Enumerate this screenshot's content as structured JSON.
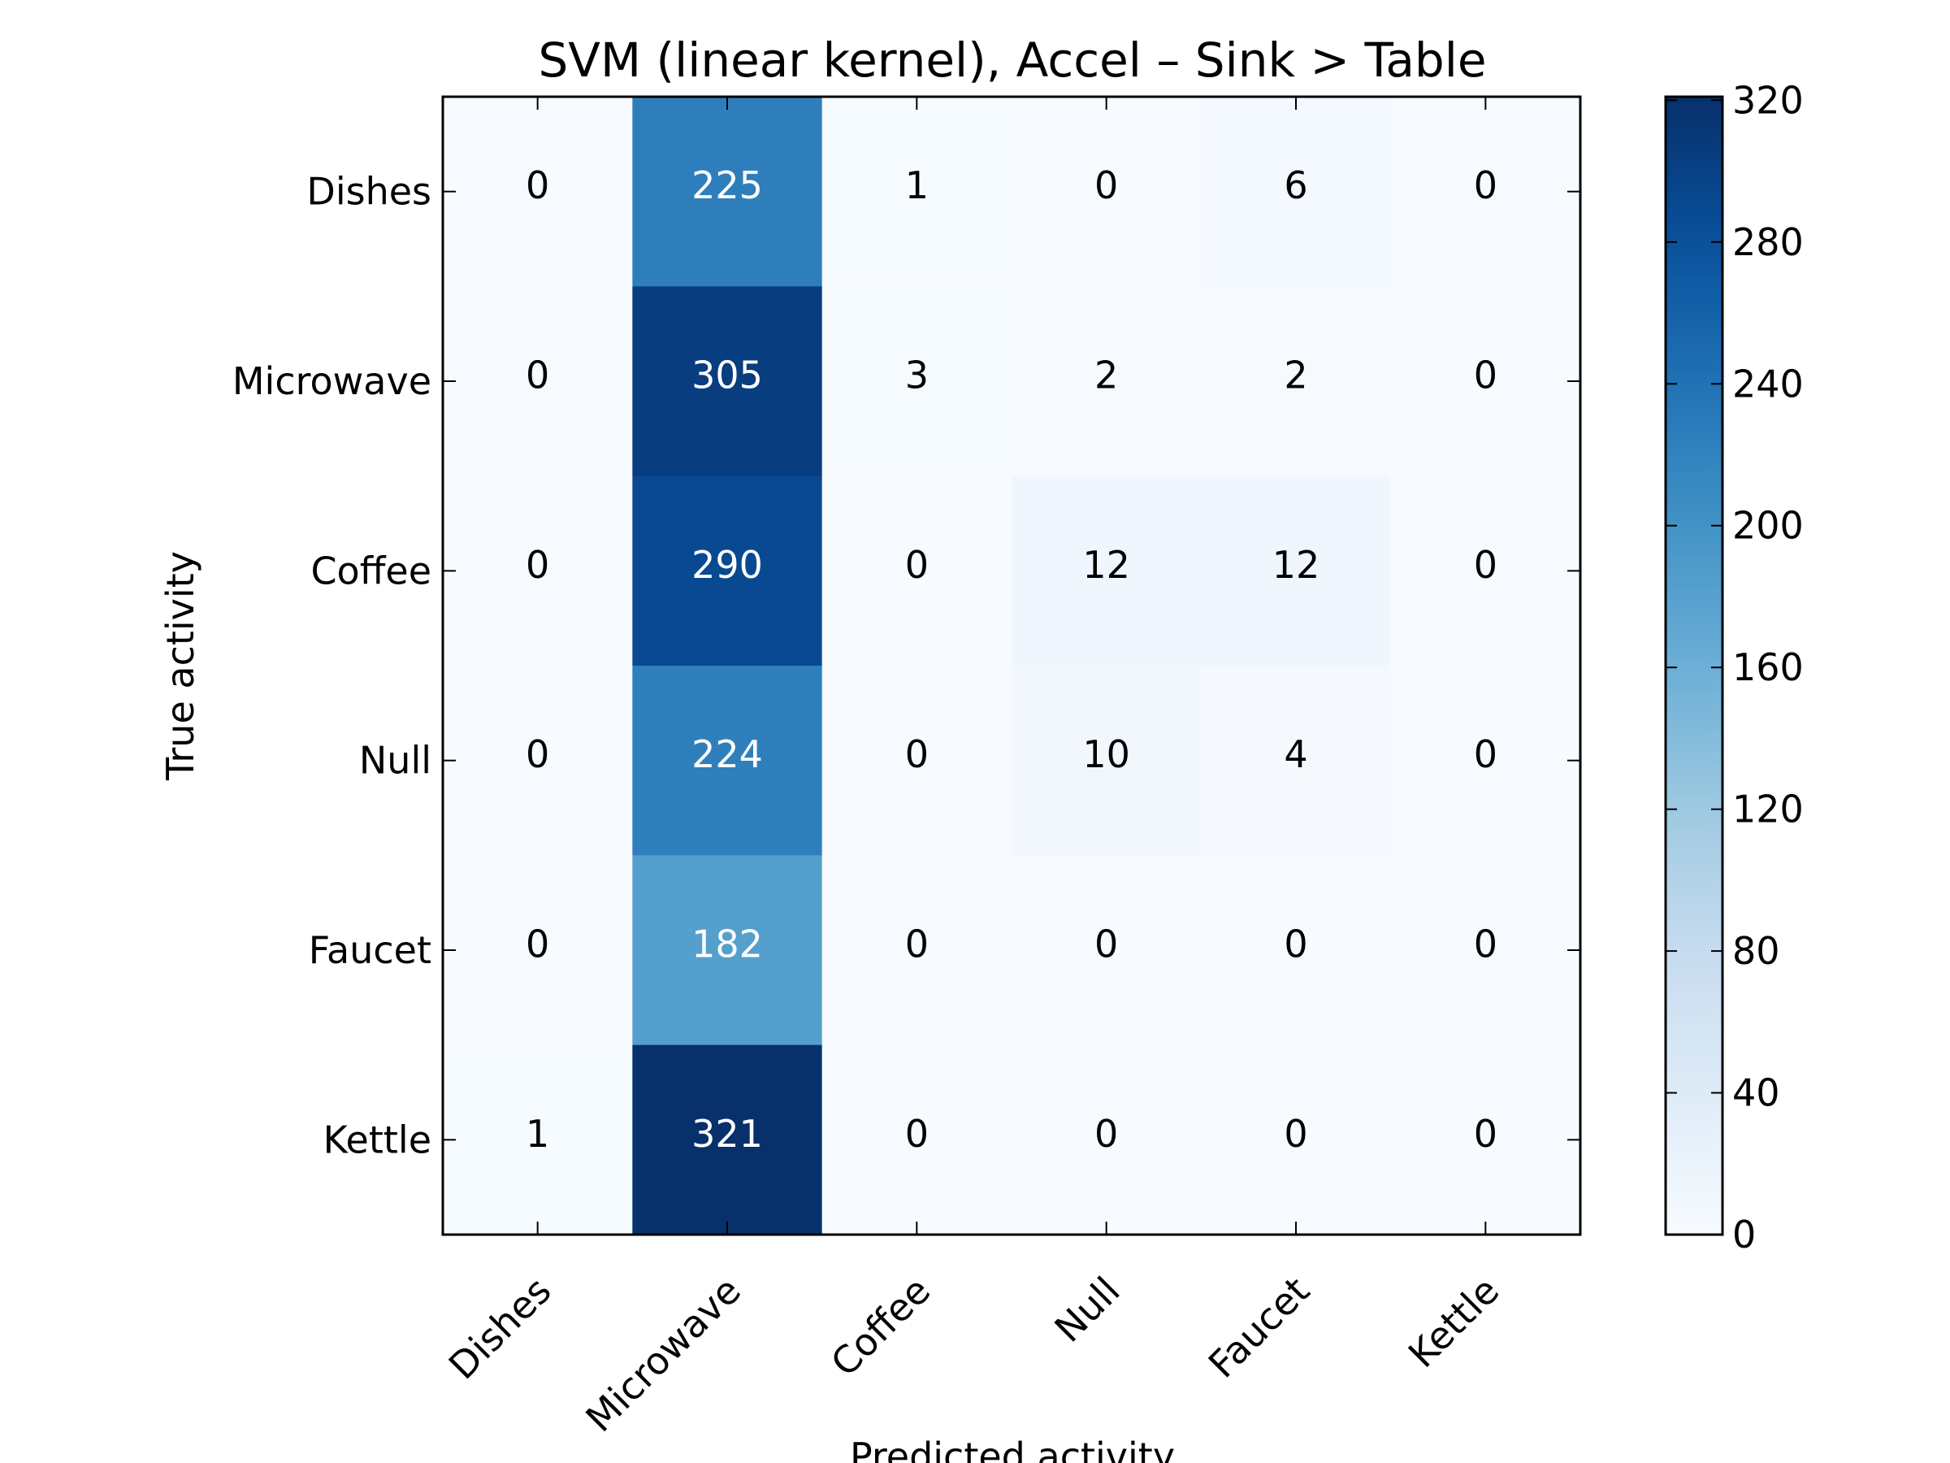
{
  "chart_data": {
    "type": "heatmap",
    "title": "SVM (linear kernel), Accel – Sink > Table",
    "xlabel": "Predicted activity",
    "ylabel": "True activity",
    "x_categories": [
      "Dishes",
      "Microwave",
      "Coffee",
      "Null",
      "Faucet",
      "Kettle"
    ],
    "y_categories": [
      "Dishes",
      "Microwave",
      "Coffee",
      "Null",
      "Faucet",
      "Kettle"
    ],
    "values": [
      [
        0,
        225,
        1,
        0,
        6,
        0
      ],
      [
        0,
        305,
        3,
        2,
        2,
        0
      ],
      [
        0,
        290,
        0,
        12,
        12,
        0
      ],
      [
        0,
        224,
        0,
        10,
        4,
        0
      ],
      [
        0,
        182,
        0,
        0,
        0,
        0
      ],
      [
        1,
        321,
        0,
        0,
        0,
        0
      ]
    ],
    "colorbar": {
      "min": 0,
      "max": 321,
      "ticks": [
        0,
        40,
        80,
        120,
        160,
        200,
        240,
        280,
        320
      ],
      "colormap": "Blues"
    },
    "grid": false
  }
}
